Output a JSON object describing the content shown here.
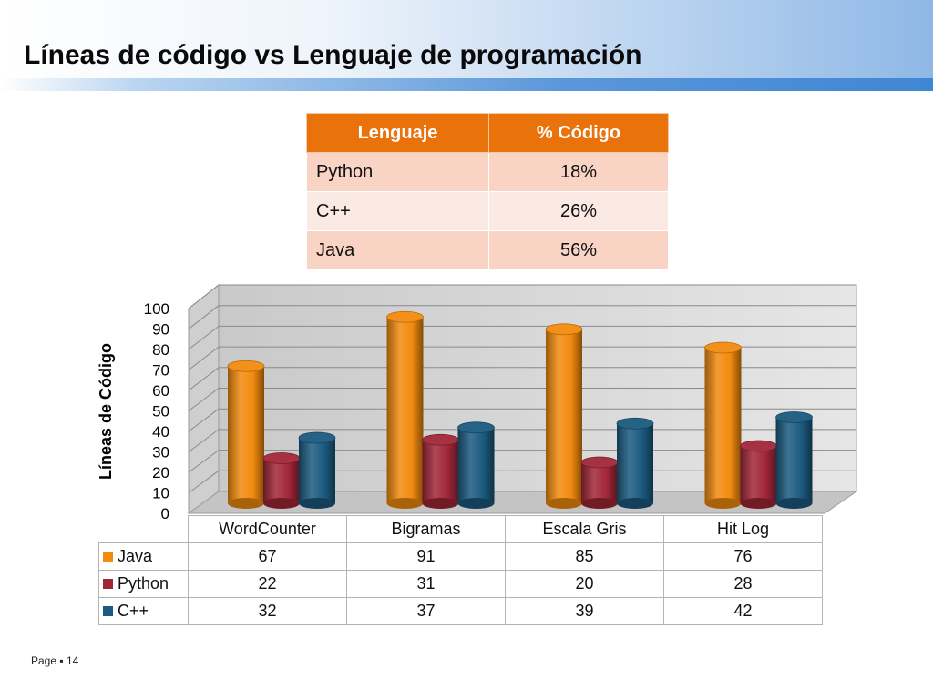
{
  "slide": {
    "title": "Líneas de código vs Lenguaje de programación",
    "page_label": "Page",
    "page_number": "14"
  },
  "colors": {
    "header_gradient_start": "#ffffff",
    "header_gradient_end": "#8fb8e6",
    "header_bar": "#3f86d4",
    "table_header": "#e9720a",
    "table_row_odd": "#f9d3c4",
    "table_row_even": "#fbe9e3"
  },
  "summary_table": {
    "headers": [
      "Lenguaje",
      "% Código"
    ],
    "rows": [
      [
        "Python",
        "18%"
      ],
      [
        "C++",
        "26%"
      ],
      [
        "Java",
        "56%"
      ]
    ]
  },
  "chart_data": {
    "type": "bar",
    "style": "3d-cylinder",
    "title": "",
    "xlabel": "",
    "ylabel": "Líneas de Código",
    "ylim": [
      0,
      100
    ],
    "yticks": [
      0,
      10,
      20,
      30,
      40,
      50,
      60,
      70,
      80,
      90,
      100
    ],
    "grid": true,
    "legend": "data-table-below",
    "categories": [
      "WordCounter",
      "Bigramas",
      "Escala Gris",
      "Hit Log"
    ],
    "series": [
      {
        "name": "Java",
        "color": "#f28a0e",
        "values": [
          67,
          91,
          85,
          76
        ]
      },
      {
        "name": "Python",
        "color": "#a12638",
        "values": [
          22,
          31,
          20,
          28
        ]
      },
      {
        "name": "C++",
        "color": "#1b5a80",
        "values": [
          32,
          37,
          39,
          42
        ]
      }
    ]
  }
}
